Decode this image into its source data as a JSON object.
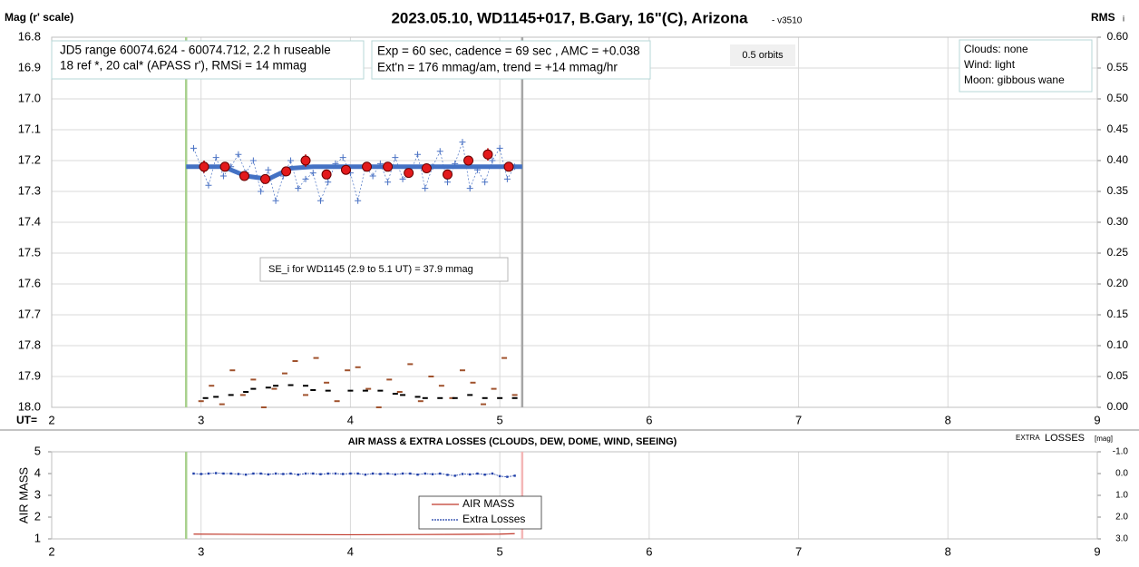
{
  "chart_data": [
    {
      "type": "line",
      "title": "2023.05.10, WD1145+017, B.Gary, 16\"(C), Arizona",
      "version": "- v3510",
      "y_label": "Mag (r' scale)",
      "y2_label": "RMS",
      "y2_label_sub": "i",
      "x_label": "UT=",
      "annotations": [
        "JD5 range 60074.624 - 60074.712, 2.2 h ruseable",
        "18 ref *, 20 cal*  (APASS r'), RMSi = 14 mmag",
        "Exp = 60 sec, cadence = 69 sec , AMC = +0.038",
        "Ext'n = 176 mmag/am, trend = +14 mmag/hr",
        "0.5 orbits",
        "Clouds: none",
        "Wind:   light",
        "Moon:  gibbous wane",
        "SE_i for WD1145 (2.9 to 5.1 UT) = 37.9 mmag"
      ],
      "xlim": [
        2,
        9
      ],
      "xticks": [
        2,
        3,
        4,
        5,
        6,
        7,
        8,
        9
      ],
      "ylim": [
        18.0,
        16.8
      ],
      "yticks": [
        16.8,
        16.9,
        {
          "value": 17.0,
          "label": "17.0"
        },
        17.1,
        17.2,
        17.3,
        17.4,
        17.5,
        17.6,
        17.7,
        17.8,
        17.9,
        {
          "value": 18.0,
          "label": "18.0"
        }
      ],
      "y2lim": [
        0,
        0.6
      ],
      "y2ticks": [
        {
          "value": 0,
          "label": "0.00"
        },
        0.05,
        {
          "value": 0.1,
          "label": "0.10"
        },
        0.15,
        {
          "value": 0.2,
          "label": "0.20"
        },
        0.25,
        {
          "value": 0.3,
          "label": "0.30"
        },
        0.35,
        {
          "value": 0.4,
          "label": "0.40"
        },
        0.45,
        {
          "value": 0.5,
          "label": "0.50"
        },
        0.55,
        {
          "value": 0.6,
          "label": "0.60"
        }
      ],
      "grid": [
        "x",
        "y"
      ],
      "vlines": [
        {
          "x": 2.9,
          "color": "#a9d18e"
        },
        {
          "x": 5.15,
          "color": "#a6a6a6"
        }
      ],
      "series": [
        {
          "style": "plus",
          "color": "#4a72c4",
          "x": [
            2.95,
            3.0,
            3.05,
            3.1,
            3.15,
            3.2,
            3.25,
            3.3,
            3.35,
            3.4,
            3.45,
            3.5,
            3.55,
            3.6,
            3.65,
            3.7,
            3.75,
            3.8,
            3.85,
            3.9,
            3.95,
            4.0,
            4.05,
            4.1,
            4.15,
            4.2,
            4.25,
            4.3,
            4.35,
            4.4,
            4.45,
            4.5,
            4.55,
            4.6,
            4.65,
            4.7,
            4.75,
            4.8,
            4.85,
            4.9,
            4.95,
            5.0,
            5.05,
            5.1
          ],
          "values": [
            17.16,
            17.22,
            17.28,
            17.19,
            17.25,
            17.22,
            17.18,
            17.24,
            17.2,
            17.3,
            17.23,
            17.33,
            17.25,
            17.2,
            17.29,
            17.26,
            17.24,
            17.33,
            17.27,
            17.21,
            17.19,
            17.24,
            17.33,
            17.22,
            17.25,
            17.21,
            17.27,
            17.19,
            17.26,
            17.24,
            17.18,
            17.29,
            17.22,
            17.17,
            17.27,
            17.21,
            17.14,
            17.29,
            17.23,
            17.27,
            17.2,
            17.16,
            17.26,
            17.22
          ]
        },
        {
          "style": "line",
          "color": "#4472c4",
          "x": [
            2.9,
            3.15,
            3.3,
            3.45,
            3.6,
            3.75,
            5.15
          ],
          "values": [
            17.22,
            17.22,
            17.25,
            17.26,
            17.225,
            17.22,
            17.22
          ]
        },
        {
          "style": "circle",
          "color": "#e31a1c",
          "x": [
            3.02,
            3.16,
            3.29,
            3.43,
            3.57,
            3.7,
            3.84,
            3.97,
            4.11,
            4.25,
            4.39,
            4.51,
            4.65,
            4.79,
            4.92,
            5.06
          ],
          "values": [
            17.22,
            17.22,
            17.25,
            17.26,
            17.235,
            17.2,
            17.245,
            17.23,
            17.22,
            17.22,
            17.24,
            17.225,
            17.245,
            17.2,
            17.18,
            17.22
          ],
          "errors": [
            0.02,
            0.015,
            0.015,
            0.01,
            0.015,
            0.02,
            0.01,
            0.01,
            0.01,
            0.01,
            0.01,
            0.01,
            0.01,
            0.015,
            0.02,
            0.01
          ]
        },
        {
          "style": "dash",
          "axis": "y2",
          "color": "#a0522d",
          "x": [
            3.0,
            3.07,
            3.14,
            3.21,
            3.28,
            3.35,
            3.42,
            3.49,
            3.56,
            3.63,
            3.7,
            3.77,
            3.84,
            3.91,
            3.98,
            4.05,
            4.12,
            4.19,
            4.26,
            4.33,
            4.4,
            4.47,
            4.54,
            4.61,
            4.68,
            4.75,
            4.82,
            4.89,
            4.96,
            5.03,
            5.1
          ],
          "values": [
            0.01,
            0.035,
            0.005,
            0.06,
            0.02,
            0.045,
            0.0,
            0.03,
            0.055,
            0.075,
            0.02,
            0.08,
            0.04,
            0.01,
            0.06,
            0.065,
            0.03,
            0.0,
            0.045,
            0.025,
            0.07,
            0.01,
            0.05,
            0.035,
            0.015,
            0.06,
            0.04,
            0.005,
            0.03,
            0.08,
            0.02
          ]
        },
        {
          "style": "dash",
          "axis": "y2",
          "color": "#000000",
          "x": [
            3.03,
            3.1,
            3.2,
            3.3,
            3.35,
            3.45,
            3.5,
            3.6,
            3.7,
            3.75,
            3.85,
            4.0,
            4.1,
            4.2,
            4.3,
            4.35,
            4.45,
            4.5,
            4.6,
            4.7,
            4.8,
            4.9,
            5.0,
            5.1
          ],
          "values": [
            0.015,
            0.017,
            0.02,
            0.025,
            0.03,
            0.032,
            0.035,
            0.036,
            0.035,
            0.028,
            0.027,
            0.027,
            0.027,
            0.027,
            0.022,
            0.02,
            0.017,
            0.015,
            0.015,
            0.015,
            0.02,
            0.015,
            0.015,
            0.015
          ]
        }
      ]
    },
    {
      "type": "line",
      "title": "AIR MASS & EXTRA LOSSES (CLOUDS, DEW, DOME, WIND, SEEING)",
      "y_label": "AIR MASS",
      "y2_label_small": "EXTRA",
      "y2_label": "LOSSES",
      "y2_label_unit": "[mag]",
      "xlim": [
        2,
        9
      ],
      "xticks": [
        2,
        3,
        4,
        5,
        6,
        7,
        8,
        9
      ],
      "ylim": [
        1,
        5
      ],
      "yticks": [
        1,
        2,
        3,
        4,
        5
      ],
      "y2lim": [
        3.0,
        -1.0
      ],
      "y2ticks": [
        {
          "value": -1,
          "label": "-1.0"
        },
        {
          "value": 0,
          "label": "0.0"
        },
        {
          "value": 1,
          "label": "1.0"
        },
        {
          "value": 2,
          "label": "2.0"
        },
        {
          "value": 3,
          "label": "3.0"
        }
      ],
      "grid": [
        "x"
      ],
      "vlines": [
        {
          "x": 2.9,
          "color": "#a9d18e"
        },
        {
          "x": 5.15,
          "color": "#f4b6b6"
        }
      ],
      "series": [
        {
          "name": "AIR MASS",
          "style": "line",
          "color": "#c0392b",
          "x": [
            2.95,
            3.5,
            4.0,
            4.5,
            5.0,
            5.1
          ],
          "values": [
            1.22,
            1.2,
            1.19,
            1.2,
            1.22,
            1.24
          ]
        },
        {
          "name": "Extra Losses",
          "style": "dotline",
          "axis": "y2",
          "color": "#1f3fa8",
          "x": [
            2.95,
            3.0,
            3.05,
            3.1,
            3.15,
            3.2,
            3.25,
            3.3,
            3.35,
            3.4,
            3.45,
            3.5,
            3.55,
            3.6,
            3.65,
            3.7,
            3.75,
            3.8,
            3.85,
            3.9,
            3.95,
            4.0,
            4.05,
            4.1,
            4.15,
            4.2,
            4.25,
            4.3,
            4.35,
            4.4,
            4.45,
            4.5,
            4.55,
            4.6,
            4.65,
            4.7,
            4.75,
            4.8,
            4.85,
            4.9,
            4.95,
            5.0,
            5.05,
            5.1
          ],
          "values": [
            0.0,
            0.02,
            0.0,
            -0.02,
            0.0,
            0.0,
            0.02,
            0.05,
            0.0,
            0.0,
            0.04,
            0.0,
            0.02,
            0.0,
            0.05,
            0.0,
            0.0,
            0.03,
            0.0,
            0.0,
            0.02,
            0.0,
            0.0,
            0.05,
            0.0,
            0.02,
            0.0,
            0.04,
            0.0,
            0.0,
            0.05,
            0.0,
            0.03,
            0.0,
            0.06,
            0.1,
            0.02,
            0.04,
            0.0,
            0.05,
            0.0,
            0.12,
            0.15,
            0.1
          ]
        }
      ]
    }
  ]
}
